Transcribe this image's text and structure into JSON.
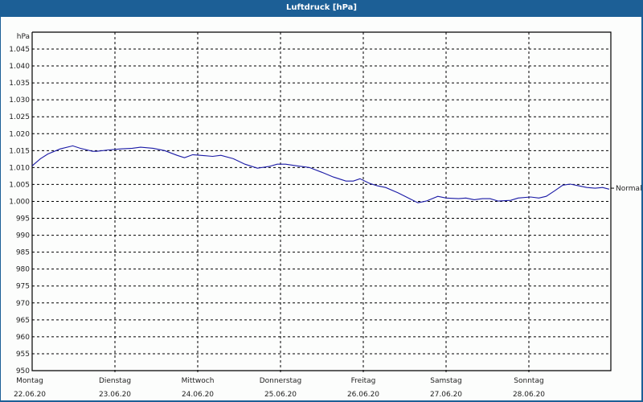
{
  "window": {
    "title": "Luftdruck [hPa]"
  },
  "chart_data": {
    "type": "line",
    "title": "Luftdruck [hPa]",
    "ylabel": "hPa",
    "xlabel": "",
    "ylim": [
      950,
      1045
    ],
    "y_ticks": [
      "950",
      "955",
      "960",
      "965",
      "970",
      "975",
      "980",
      "985",
      "990",
      "995",
      "1.000",
      "1.005",
      "1.010",
      "1.015",
      "1.020",
      "1.025",
      "1.030",
      "1.035",
      "1.040",
      "1.045"
    ],
    "x_ticks": [
      {
        "day": "Montag",
        "date": "22.06.20"
      },
      {
        "day": "Dienstag",
        "date": "23.06.20"
      },
      {
        "day": "Mittwoch",
        "date": "24.06.20"
      },
      {
        "day": "Donnerstag",
        "date": "25.06.20"
      },
      {
        "day": "Freitag",
        "date": "26.06.20"
      },
      {
        "day": "Samstag",
        "date": "27.06.20"
      },
      {
        "day": "Sonntag",
        "date": "28.06.20"
      }
    ],
    "annotation": "Normal",
    "grid": true,
    "series": [
      {
        "name": "Luftdruck",
        "color": "#1a1aa6",
        "x_days": [
          0,
          0.1,
          0.19,
          0.34,
          0.49,
          0.58,
          0.73,
          0.78,
          0.92,
          1.07,
          1.21,
          1.31,
          1.46,
          1.6,
          1.75,
          1.84,
          1.94,
          2.03,
          2.18,
          2.28,
          2.43,
          2.57,
          2.72,
          2.86,
          2.96,
          3.06,
          3.2,
          3.35,
          3.5,
          3.64,
          3.79,
          3.88,
          3.96,
          4.08,
          4.17,
          4.27,
          4.42,
          4.56,
          4.66,
          4.76,
          4.9,
          5.0,
          5.15,
          5.24,
          5.34,
          5.44,
          5.53,
          5.63,
          5.78,
          5.87,
          6.02,
          6.12,
          6.21,
          6.31,
          6.41,
          6.5,
          6.6,
          6.7,
          6.8,
          6.89,
          6.97
        ],
        "values": [
          1010.5,
          1012.6,
          1014.0,
          1015.5,
          1016.4,
          1015.7,
          1014.8,
          1014.8,
          1015.2,
          1015.5,
          1015.7,
          1016.0,
          1015.7,
          1015.0,
          1013.6,
          1012.9,
          1013.8,
          1013.6,
          1013.3,
          1013.6,
          1012.6,
          1011.0,
          1009.8,
          1010.3,
          1011.0,
          1011.0,
          1010.5,
          1010.0,
          1008.6,
          1007.2,
          1006.0,
          1006.0,
          1006.7,
          1005.3,
          1004.6,
          1004.1,
          1002.5,
          1000.8,
          999.6,
          1000.1,
          1001.5,
          1001.0,
          1000.8,
          1001.0,
          1000.5,
          1000.8,
          1000.8,
          1000.1,
          1000.3,
          1001.0,
          1001.3,
          1001.0,
          1001.5,
          1003.1,
          1004.8,
          1005.1,
          1004.6,
          1004.1,
          1003.9,
          1004.1,
          1003.6
        ]
      }
    ]
  }
}
